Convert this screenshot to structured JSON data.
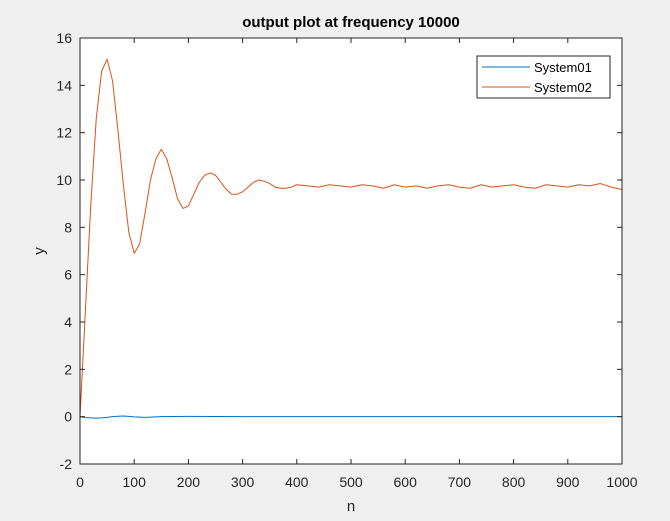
{
  "chart_data": {
    "type": "line",
    "title": "output plot at frequency 10000",
    "xlabel": "n",
    "ylabel": "y",
    "xlim": [
      0,
      1000
    ],
    "ylim": [
      -2,
      16
    ],
    "xticks": [
      0,
      100,
      200,
      300,
      400,
      500,
      600,
      700,
      800,
      900,
      1000
    ],
    "yticks": [
      -2,
      0,
      2,
      4,
      6,
      8,
      10,
      12,
      14,
      16
    ],
    "grid": false,
    "legend_position": "top-right",
    "series": [
      {
        "name": "System01",
        "color": "#0072BD",
        "x": [
          0,
          10,
          20,
          30,
          40,
          50,
          60,
          70,
          80,
          90,
          100,
          110,
          120,
          130,
          150,
          200,
          300,
          400,
          500,
          600,
          700,
          800,
          900,
          1000
        ],
        "y": [
          0,
          -0.04,
          -0.05,
          -0.06,
          -0.05,
          -0.03,
          0.0,
          0.02,
          0.03,
          0.01,
          -0.01,
          -0.02,
          -0.03,
          -0.02,
          0.0,
          0.01,
          0.0,
          0.0,
          0.0,
          0.0,
          0.0,
          0.0,
          0.0,
          0.0
        ]
      },
      {
        "name": "System02",
        "color": "#D95319",
        "x": [
          0,
          10,
          20,
          30,
          40,
          50,
          60,
          70,
          80,
          90,
          100,
          110,
          120,
          130,
          140,
          150,
          160,
          170,
          180,
          190,
          200,
          210,
          220,
          230,
          240,
          250,
          260,
          270,
          280,
          290,
          300,
          310,
          320,
          330,
          340,
          350,
          360,
          370,
          380,
          390,
          400,
          420,
          440,
          460,
          480,
          500,
          520,
          540,
          560,
          580,
          600,
          620,
          640,
          660,
          680,
          700,
          720,
          740,
          760,
          780,
          800,
          820,
          840,
          860,
          880,
          900,
          920,
          940,
          960,
          980,
          1000
        ],
        "y": [
          0,
          4.5,
          9.0,
          12.6,
          14.6,
          15.1,
          14.2,
          12.1,
          9.8,
          7.8,
          6.9,
          7.3,
          8.6,
          10.0,
          10.9,
          11.3,
          10.9,
          10.1,
          9.2,
          8.8,
          8.9,
          9.4,
          9.9,
          10.2,
          10.3,
          10.2,
          9.9,
          9.6,
          9.4,
          9.4,
          9.5,
          9.7,
          9.9,
          10.0,
          9.95,
          9.85,
          9.7,
          9.65,
          9.65,
          9.7,
          9.8,
          9.75,
          9.7,
          9.8,
          9.75,
          9.7,
          9.8,
          9.75,
          9.65,
          9.8,
          9.7,
          9.75,
          9.65,
          9.75,
          9.8,
          9.7,
          9.65,
          9.8,
          9.7,
          9.75,
          9.8,
          9.7,
          9.65,
          9.8,
          9.75,
          9.7,
          9.8,
          9.75,
          9.85,
          9.7,
          9.6
        ]
      }
    ]
  }
}
